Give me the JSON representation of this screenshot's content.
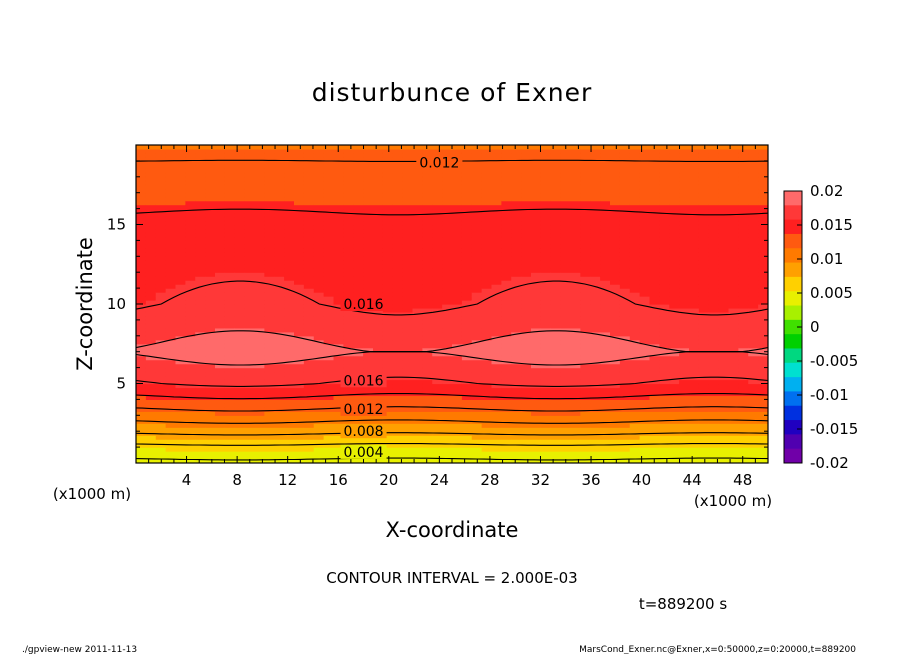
{
  "chart_data": {
    "type": "heatmap",
    "title": "disturbunce of Exner",
    "xlabel": "X-coordinate",
    "ylabel": "Z-coordinate",
    "x_unit": "(x1000 m)",
    "y_unit": "(x1000 m)",
    "xlim": [
      0,
      50
    ],
    "ylim": [
      0,
      20
    ],
    "xticks": [
      4,
      8,
      12,
      16,
      20,
      24,
      28,
      32,
      36,
      40,
      44,
      48
    ],
    "yticks": [
      5,
      10,
      15
    ],
    "colorbar": {
      "min": -0.02,
      "max": 0.02,
      "labels": [
        "0.02",
        "0.015",
        "0.01",
        "0.005",
        "0",
        "-0.005",
        "-0.01",
        "-0.015",
        "-0.02"
      ],
      "label_values": [
        0.02,
        0.015,
        0.01,
        0.005,
        0,
        -0.005,
        -0.01,
        -0.015,
        -0.02
      ],
      "band_colors": [
        "#ff6a6a",
        "#ff3838",
        "#ff2020",
        "#ff5a10",
        "#ff7a00",
        "#ffa000",
        "#ffd000",
        "#e8f000",
        "#a8f000",
        "#40e000",
        "#00d000",
        "#00d880",
        "#00e0d0",
        "#00b0f0",
        "#0070f0",
        "#0030e0",
        "#2000c0",
        "#5000b0",
        "#7000a8"
      ]
    },
    "vertical_profile": {
      "z": [
        0,
        1,
        2,
        3,
        4,
        5,
        7,
        10,
        15,
        19,
        20
      ],
      "values": [
        0.0035,
        0.0055,
        0.0085,
        0.011,
        0.0135,
        0.016,
        0.0185,
        0.016,
        0.0145,
        0.012,
        0.0115
      ]
    },
    "contour_interval": 0.002,
    "contour_labels": [
      {
        "text": "0.012",
        "x": 24,
        "z": 18.9
      },
      {
        "text": "0.016",
        "x": 18,
        "z": 10
      },
      {
        "text": "0.016",
        "x": 18,
        "z": 5.2
      },
      {
        "text": "0.012",
        "x": 18,
        "z": 3.4
      },
      {
        "text": "0.008",
        "x": 18,
        "z": 2.0
      },
      {
        "text": "0.004",
        "x": 18,
        "z": 0.7
      }
    ]
  },
  "footer": {
    "contour_interval_text": "CONTOUR INTERVAL = 2.000E-03",
    "time_text": "t=889200  s",
    "program_text": "./gpview-new   2011-11-13",
    "source_text": "MarsCond_Exner.nc@Exner,x=0:50000,z=0:20000,t=889200"
  }
}
